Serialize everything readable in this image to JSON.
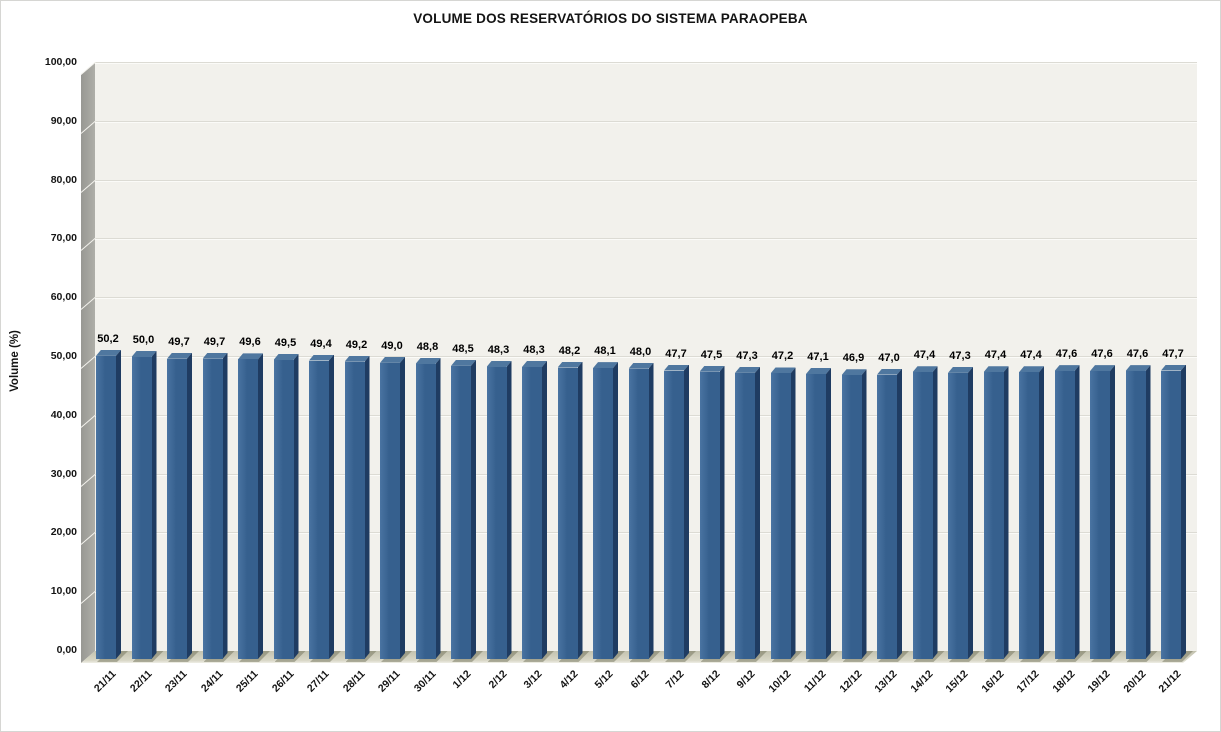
{
  "chart_data": {
    "type": "bar",
    "style": "3d-column",
    "title": "VOLUME DOS RESERVATÓRIOS DO SISTEMA PARAOPEBA",
    "ylabel": "Volume (%)",
    "xlabel": "",
    "ylim": [
      0,
      100
    ],
    "grid": "horizontal",
    "legend": "none",
    "y_ticks": [
      0,
      10,
      20,
      30,
      40,
      50,
      60,
      70,
      80,
      90,
      100
    ],
    "y_tick_labels": [
      "0,00",
      "10,00",
      "20,00",
      "30,00",
      "40,00",
      "50,00",
      "60,00",
      "70,00",
      "80,00",
      "90,00",
      "100,00"
    ],
    "categories": [
      "21/11",
      "22/11",
      "23/11",
      "24/11",
      "25/11",
      "26/11",
      "27/11",
      "28/11",
      "29/11",
      "30/11",
      "1/12",
      "2/12",
      "3/12",
      "4/12",
      "5/12",
      "6/12",
      "7/12",
      "8/12",
      "9/12",
      "10/12",
      "11/12",
      "12/12",
      "13/12",
      "14/12",
      "15/12",
      "16/12",
      "17/12",
      "18/12",
      "19/12",
      "20/12",
      "21/12"
    ],
    "values": [
      50.2,
      50.0,
      49.7,
      49.7,
      49.6,
      49.5,
      49.4,
      49.2,
      49.0,
      48.8,
      48.5,
      48.3,
      48.3,
      48.2,
      48.1,
      48.0,
      47.7,
      47.5,
      47.3,
      47.2,
      47.1,
      46.9,
      47.0,
      47.4,
      47.3,
      47.4,
      47.4,
      47.6,
      47.6,
      47.6,
      47.7
    ],
    "value_labels": [
      "50,2",
      "50,0",
      "49,7",
      "49,7",
      "49,6",
      "49,5",
      "49,4",
      "49,2",
      "49,0",
      "48,8",
      "48,5",
      "48,3",
      "48,3",
      "48,2",
      "48,1",
      "48,0",
      "47,7",
      "47,5",
      "47,3",
      "47,2",
      "47,1",
      "46,9",
      "47,0",
      "47,4",
      "47,3",
      "47,4",
      "47,4",
      "47,6",
      "47,6",
      "47,6",
      "47,7"
    ],
    "colors": {
      "bar_front": "#36608e",
      "bar_front_light": "#4a74a2",
      "bar_side": "#1f3c62",
      "bar_top": "#4f779f",
      "plot_bg": "#f2f1ec",
      "gridline": "#dcdbd4",
      "wall": "#a2a29c",
      "floor": "#cccbb8",
      "shadow": "rgba(104,104,80,0.45)",
      "text": "#141414"
    }
  }
}
